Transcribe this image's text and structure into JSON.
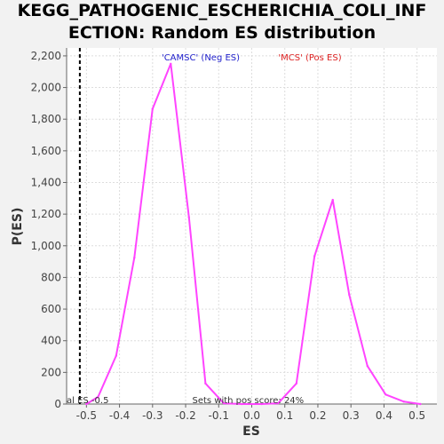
{
  "chart_data": {
    "type": "line",
    "title_lines": [
      "KEGG_PATHOGENIC_ESCHERICHIA_COLI_INF",
      "ECTION: Random ES distribution"
    ],
    "xlabel": "ES",
    "ylabel": "P(ES)",
    "xlim": [
      -0.56,
      0.56
    ],
    "ylim": [
      0,
      2250
    ],
    "x_ticks": [
      -0.5,
      -0.4,
      -0.3,
      -0.2,
      -0.1,
      0.0,
      0.1,
      0.2,
      0.3,
      0.4,
      0.5
    ],
    "x_tick_labels": [
      "-0.5",
      "-0.4",
      "-0.3",
      "-0.2",
      "-0.1",
      "0.0",
      "0.1",
      "0.2",
      "0.3",
      "0.4",
      "0.5"
    ],
    "y_ticks": [
      0,
      200,
      400,
      600,
      800,
      1000,
      1200,
      1400,
      1600,
      1800,
      2000,
      2200
    ],
    "y_tick_labels": [
      "0",
      "200",
      "400",
      "600",
      "800",
      "1,000",
      "1,200",
      "1,400",
      "1,600",
      "1,800",
      "2,000",
      "2,200"
    ],
    "grid": true,
    "series": [
      {
        "color": "#ff44ff",
        "x": [
          -0.5,
          -0.465,
          -0.41,
          -0.355,
          -0.3,
          -0.245,
          -0.19,
          -0.14,
          -0.085,
          -0.03,
          0.03,
          0.08,
          0.135,
          0.19,
          0.245,
          0.295,
          0.35,
          0.405,
          0.46,
          0.51
        ],
        "y": [
          0,
          45,
          305,
          925,
          1865,
          2150,
          1180,
          130,
          5,
          0,
          0,
          5,
          130,
          935,
          1290,
          690,
          240,
          60,
          15,
          0
        ]
      }
    ],
    "marker_line": {
      "x": -0.52,
      "style": "dashed",
      "color": "#000000"
    },
    "legend": [
      {
        "text": "'CAMSC' (Neg ES)",
        "color": "#2222cc"
      },
      {
        "text": "'MCS' (Pos ES)",
        "color": "#dd2222"
      }
    ],
    "annotations": [
      {
        "text": "al ES -0.5",
        "x": -0.56
      },
      {
        "text": "Sets with pos score: 24%",
        "x": -0.18
      }
    ]
  }
}
